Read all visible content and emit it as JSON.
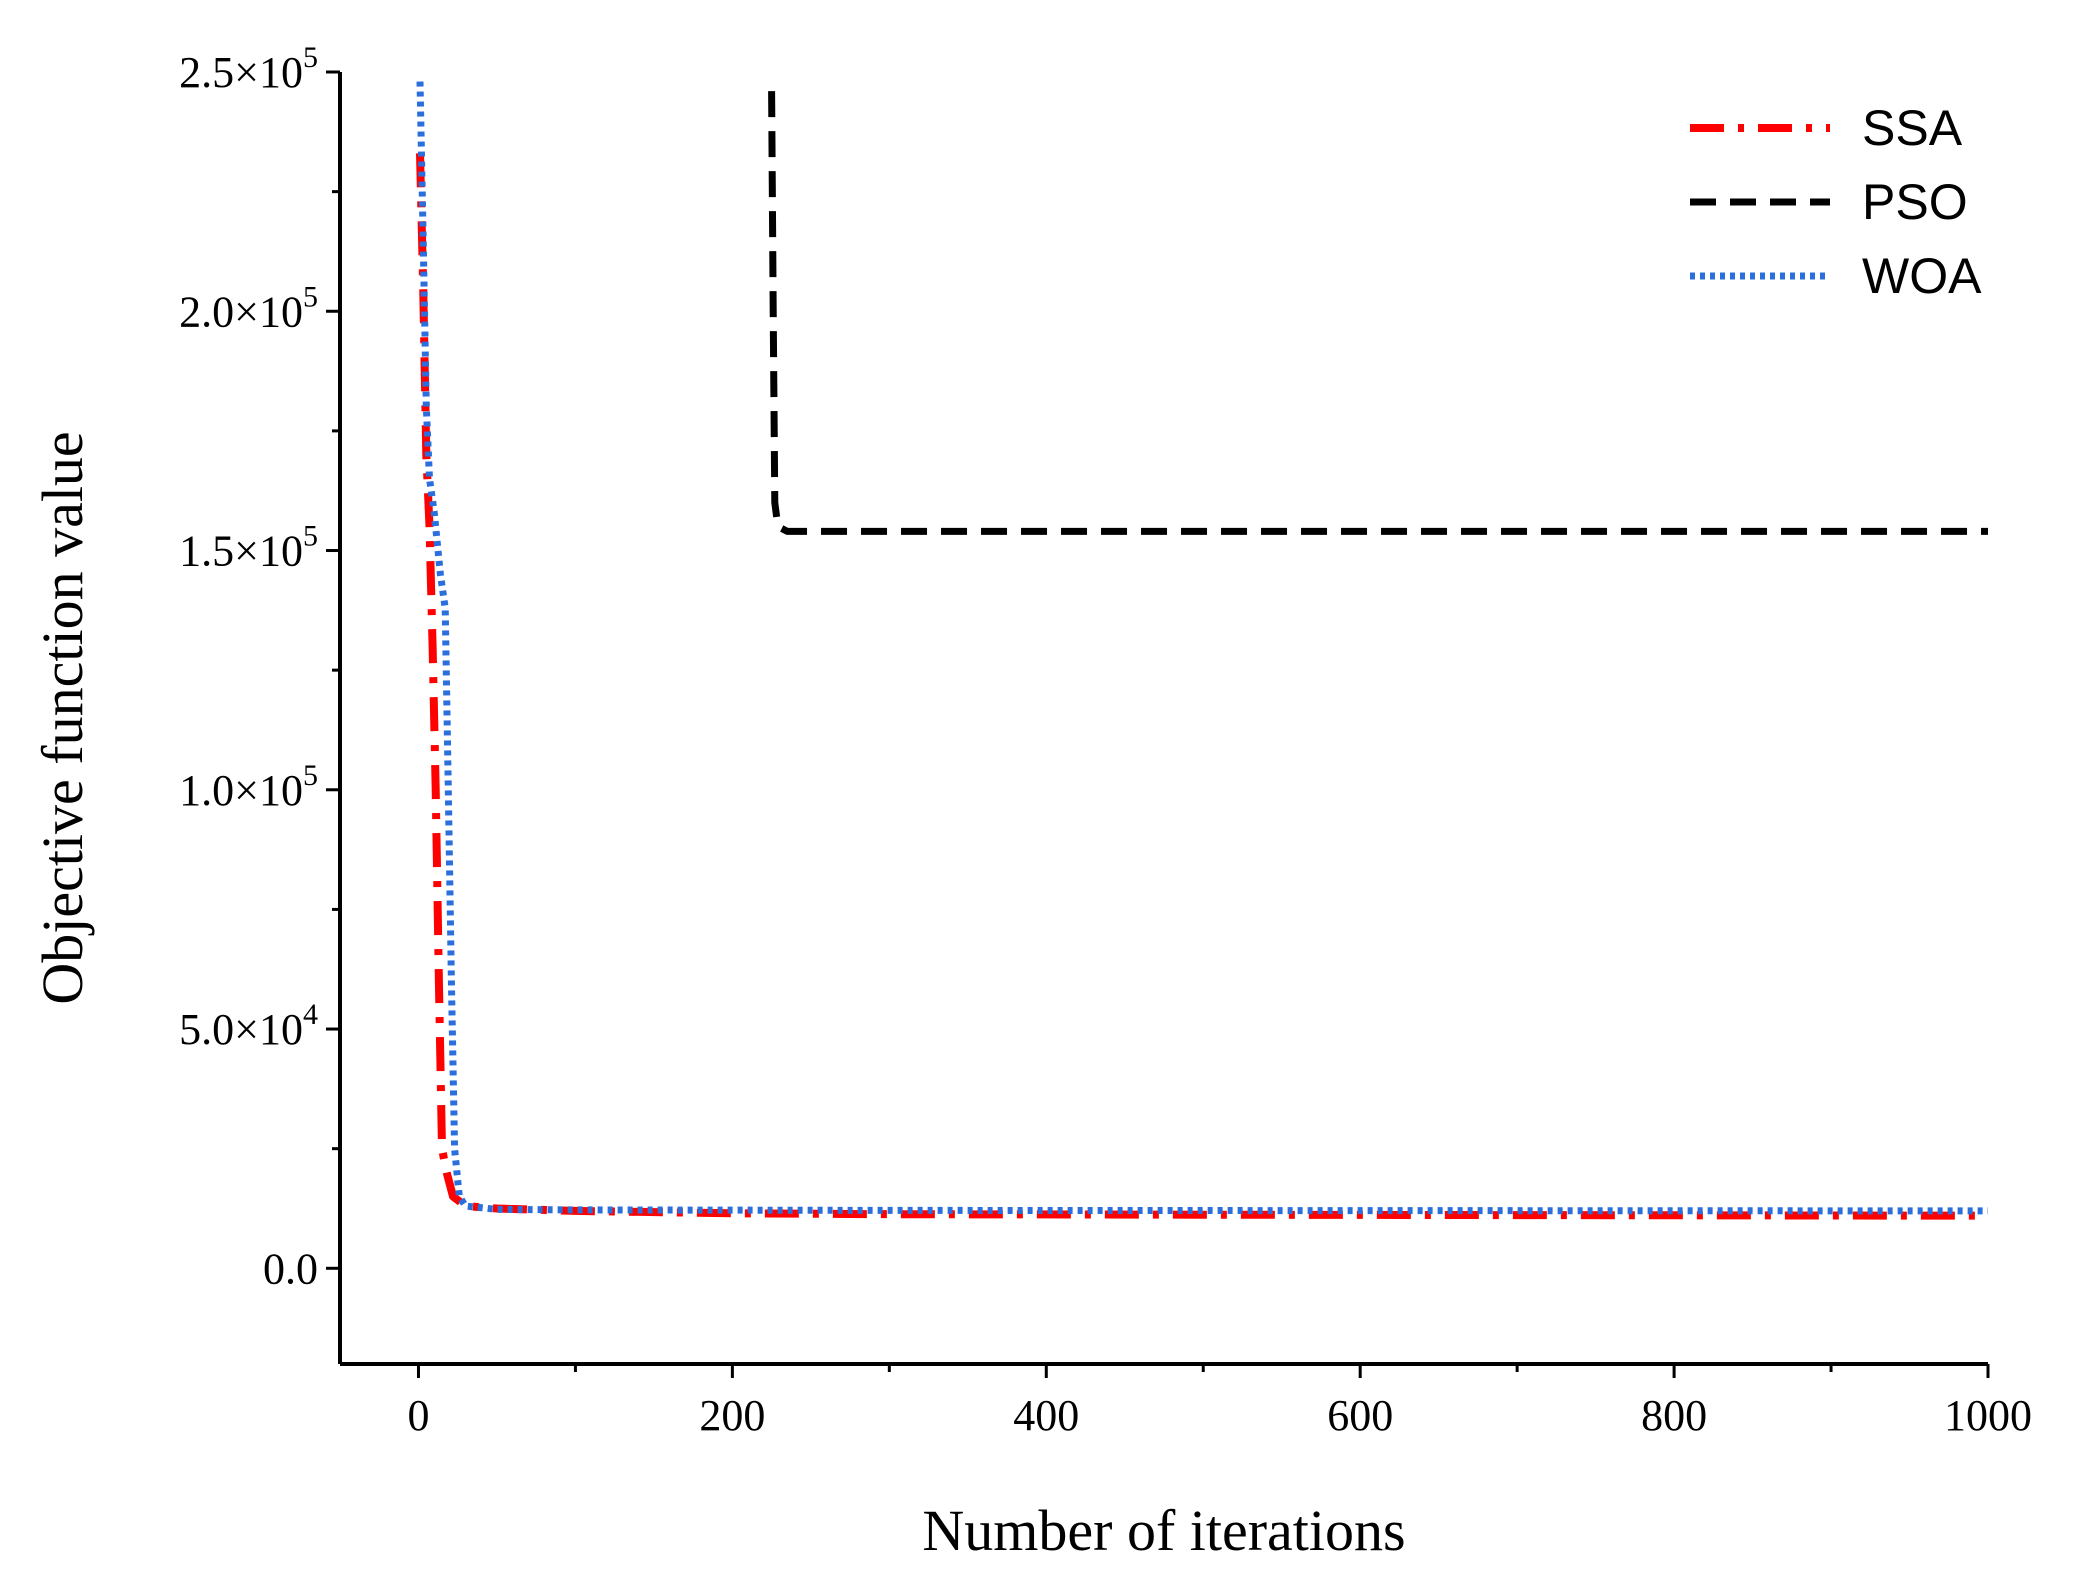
{
  "chart_data": {
    "type": "line",
    "xlabel": "Number of iterations",
    "ylabel": "Objective function value",
    "xlim": [
      -50,
      1000
    ],
    "ylim": [
      -20000,
      250000
    ],
    "x_ticks": [
      0,
      200,
      400,
      600,
      800,
      1000
    ],
    "x_tick_labels": [
      "0",
      "200",
      "400",
      "600",
      "800",
      "1000"
    ],
    "y_ticks": [
      {
        "value": 0,
        "mantissa": "0.0",
        "exp": ""
      },
      {
        "value": 50000,
        "mantissa": "5.0×10",
        "exp": "4"
      },
      {
        "value": 100000,
        "mantissa": "1.0×10",
        "exp": "5"
      },
      {
        "value": 150000,
        "mantissa": "1.5×10",
        "exp": "5"
      },
      {
        "value": 200000,
        "mantissa": "2.0×10",
        "exp": "5"
      },
      {
        "value": 250000,
        "mantissa": "2.5×10",
        "exp": "5"
      }
    ],
    "grid": false,
    "legend_position": "top-right",
    "series": [
      {
        "name": "SSA",
        "color": "#ff0000",
        "style": "dash-dot",
        "points": [
          [
            1,
            233000
          ],
          [
            3,
            205000
          ],
          [
            5,
            170000
          ],
          [
            7,
            155000
          ],
          [
            9,
            130000
          ],
          [
            11,
            100000
          ],
          [
            13,
            60000
          ],
          [
            15,
            25000
          ],
          [
            18,
            20000
          ],
          [
            22,
            15000
          ],
          [
            30,
            13000
          ],
          [
            50,
            12500
          ],
          [
            100,
            12000
          ],
          [
            200,
            11500
          ],
          [
            300,
            11300
          ],
          [
            500,
            11200
          ],
          [
            1000,
            11000
          ]
        ]
      },
      {
        "name": "PSO",
        "color": "#000000",
        "style": "dash",
        "points": [
          [
            225,
            246000
          ],
          [
            226,
            200000
          ],
          [
            227,
            160000
          ],
          [
            229,
            155000
          ],
          [
            235,
            154000
          ],
          [
            1000,
            154000
          ]
        ]
      },
      {
        "name": "WOA",
        "color": "#2a6fdb",
        "style": "dot",
        "points": [
          [
            1,
            248000
          ],
          [
            3,
            215000
          ],
          [
            5,
            180000
          ],
          [
            7,
            165000
          ],
          [
            10,
            158000
          ],
          [
            14,
            145000
          ],
          [
            17,
            138000
          ],
          [
            19,
            100000
          ],
          [
            21,
            60000
          ],
          [
            23,
            25000
          ],
          [
            26,
            15000
          ],
          [
            30,
            13000
          ],
          [
            50,
            12300
          ],
          [
            100,
            12200
          ],
          [
            300,
            12100
          ],
          [
            1000,
            12000
          ]
        ]
      }
    ]
  }
}
